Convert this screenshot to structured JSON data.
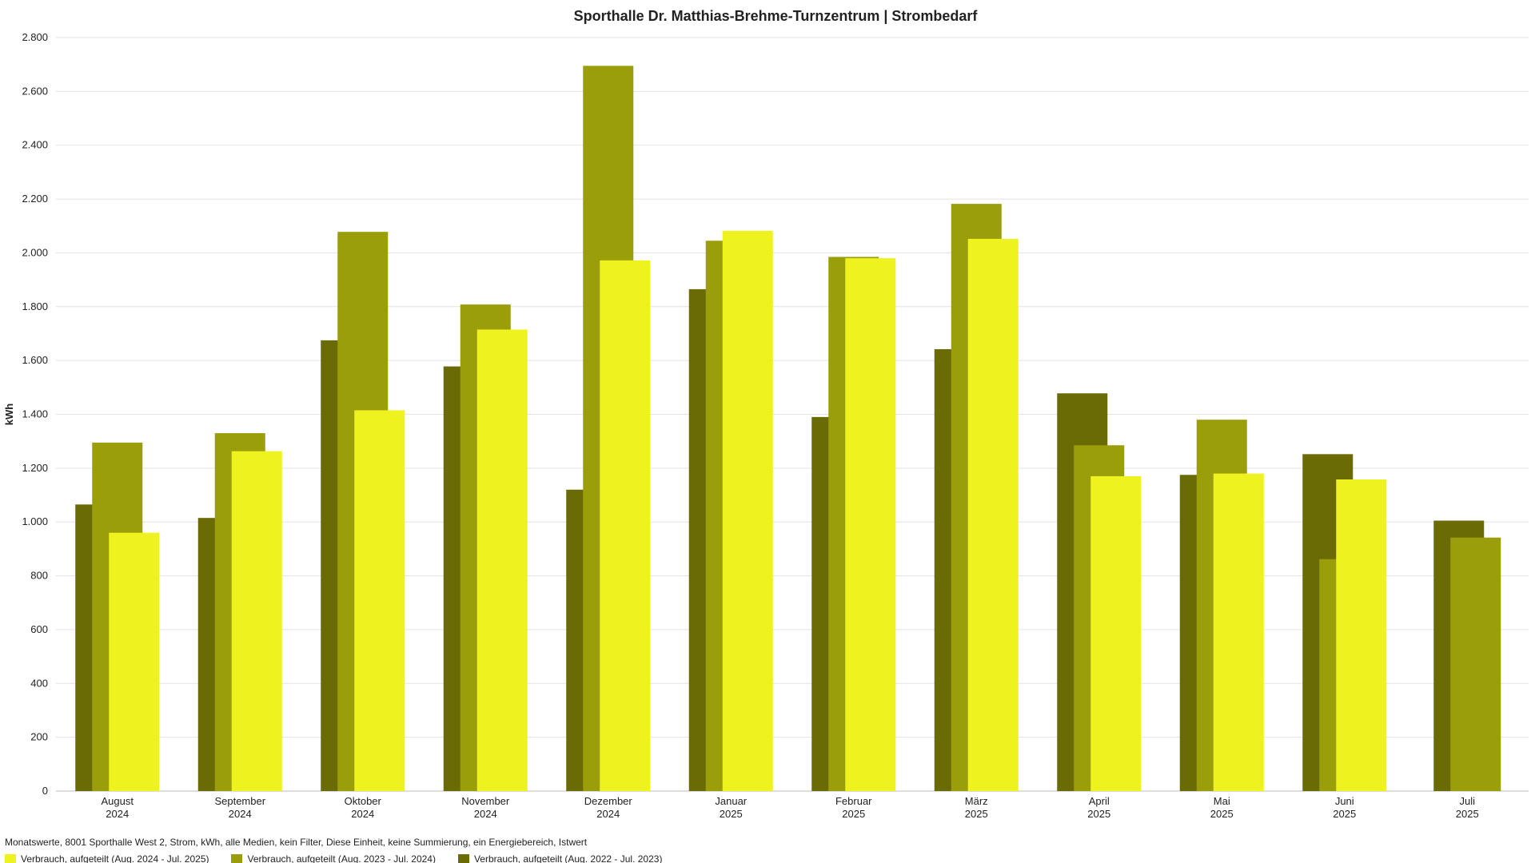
{
  "chart_data": {
    "type": "bar",
    "title": "Sporthalle Dr. Matthias-Brehme-Turnzentrum | Strombedarf",
    "xlabel": "",
    "ylabel": "kWh",
    "ylim": [
      0,
      2800
    ],
    "yticks": [
      0,
      200,
      400,
      600,
      800,
      1000,
      1200,
      1400,
      1600,
      1800,
      2000,
      2200,
      2400,
      2600,
      2800
    ],
    "ytick_labels": [
      "0",
      "200",
      "400",
      "600",
      "800",
      "1.000",
      "1.200",
      "1.400",
      "1.600",
      "1.800",
      "2.000",
      "2.200",
      "2.400",
      "2.600",
      "2.800"
    ],
    "grid": true,
    "categories": [
      {
        "month": "August",
        "year": "2024"
      },
      {
        "month": "September",
        "year": "2024"
      },
      {
        "month": "Oktober",
        "year": "2024"
      },
      {
        "month": "November",
        "year": "2024"
      },
      {
        "month": "Dezember",
        "year": "2024"
      },
      {
        "month": "Januar",
        "year": "2025"
      },
      {
        "month": "Februar",
        "year": "2025"
      },
      {
        "month": "März",
        "year": "2025"
      },
      {
        "month": "April",
        "year": "2025"
      },
      {
        "month": "Mai",
        "year": "2025"
      },
      {
        "month": "Juni",
        "year": "2025"
      },
      {
        "month": "Juli",
        "year": "2025"
      }
    ],
    "series": [
      {
        "name": "Verbrauch, aufgeteilt (Aug. 2022 - Jul. 2023)",
        "color": "#6b6b05",
        "values": [
          1065,
          1015,
          1675,
          1578,
          1120,
          1865,
          1390,
          1642,
          1478,
          1175,
          1252,
          1005
        ]
      },
      {
        "name": "Verbrauch, aufgeteilt (Aug. 2023 - Jul. 2024)",
        "color": "#9a9e0a",
        "values": [
          1295,
          1330,
          2078,
          1808,
          2695,
          2045,
          1985,
          2182,
          1285,
          1380,
          862,
          942
        ]
      },
      {
        "name": "Verbrauch, aufgeteilt (Aug. 2024 - Jul. 2025)",
        "color": "#eef21e",
        "values": [
          960,
          1263,
          1415,
          1715,
          1972,
          2082,
          1980,
          2052,
          1170,
          1180,
          1158,
          null
        ]
      }
    ],
    "legend_order": [
      2,
      1,
      0
    ],
    "legend_placement": "bottom-left",
    "caption": "Monatswerte, 8001 Sporthalle West 2, Strom, kWh, alle Medien, kein Filter, Diese Einheit, keine Summierung, ein Energiebereich, Istwert"
  }
}
